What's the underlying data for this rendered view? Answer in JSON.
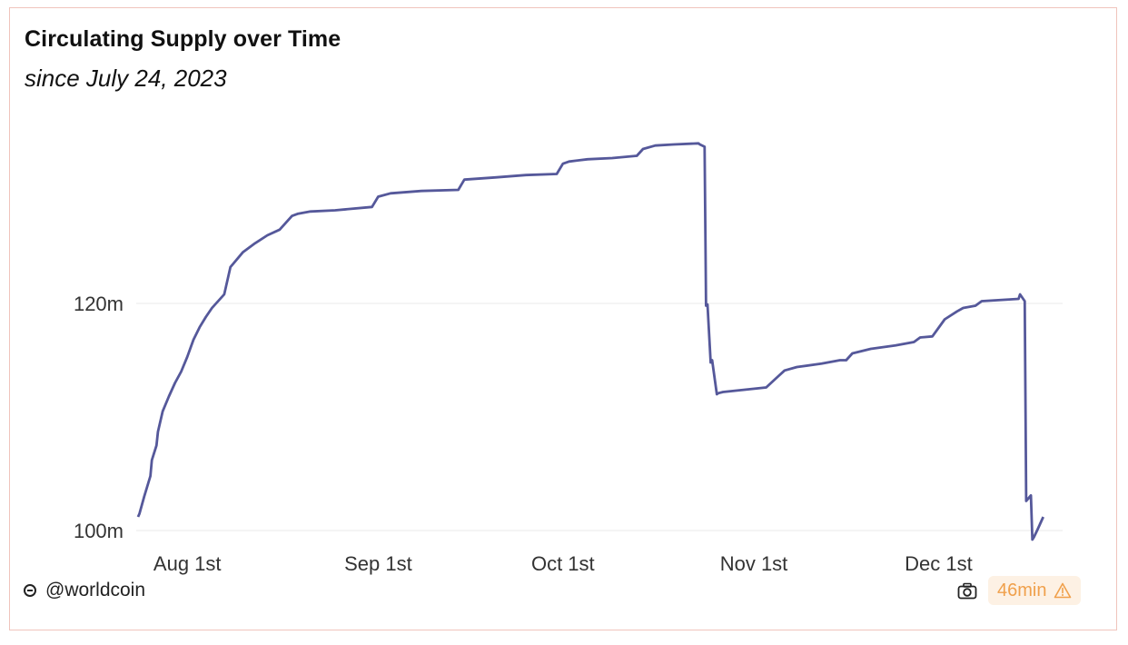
{
  "header": {
    "title": "Circulating Supply over Time",
    "subtitle": "since July 24, 2023"
  },
  "footer": {
    "handle": "@worldcoin",
    "age_label": "46min",
    "brand_icon": "worldcoin-logo-icon",
    "camera_icon": "camera-icon",
    "warning_icon": "warning-icon"
  },
  "colors": {
    "line": "#55589a",
    "grid": "#e8e8e8",
    "warning": "#f0a04b",
    "border": "#f0c4bc"
  },
  "chart_data": {
    "type": "line",
    "title": "Circulating Supply over Time",
    "subtitle": "since July 24, 2023",
    "xlabel": "",
    "ylabel": "",
    "grid": true,
    "x_ticks": [
      {
        "x": "2023-08-01",
        "label": "Aug 1st"
      },
      {
        "x": "2023-09-01",
        "label": "Sep 1st"
      },
      {
        "x": "2023-10-01",
        "label": "Oct 1st"
      },
      {
        "x": "2023-11-01",
        "label": "Nov 1st"
      },
      {
        "x": "2023-12-01",
        "label": "Dec 1st"
      }
    ],
    "y_ticks": [
      {
        "y": 100,
        "label": "100m"
      },
      {
        "y": 120,
        "label": "120m"
      }
    ],
    "xlim": [
      "2023-07-24",
      "2023-12-19"
    ],
    "ylim": [
      99,
      135
    ],
    "series": [
      {
        "x": [
          "2023-07-24",
          "2023-07-24",
          "2023-07-25",
          "2023-07-26",
          "2023-07-26",
          "2023-07-27",
          "2023-07-27",
          "2023-07-28",
          "2023-07-29",
          "2023-07-30",
          "2023-07-31",
          "2023-08-01",
          "2023-08-02",
          "2023-08-03",
          "2023-08-04",
          "2023-08-05",
          "2023-08-07",
          "2023-08-08",
          "2023-08-10",
          "2023-08-12",
          "2023-08-14",
          "2023-08-16",
          "2023-08-18",
          "2023-08-19",
          "2023-08-21",
          "2023-08-25",
          "2023-08-31",
          "2023-09-01",
          "2023-09-03",
          "2023-09-08",
          "2023-09-14",
          "2023-09-15",
          "2023-09-20",
          "2023-09-25",
          "2023-09-30",
          "2023-10-01",
          "2023-10-02",
          "2023-10-05",
          "2023-10-09",
          "2023-10-13",
          "2023-10-14",
          "2023-10-16",
          "2023-10-19",
          "2023-10-23",
          "2023-10-23",
          "2023-10-24",
          "2023-10-24",
          "2023-10-24",
          "2023-10-25",
          "2023-10-25",
          "2023-10-26",
          "2023-10-26",
          "2023-10-27",
          "2023-11-03",
          "2023-11-05",
          "2023-11-06",
          "2023-11-08",
          "2023-11-12",
          "2023-11-15",
          "2023-11-16",
          "2023-11-17",
          "2023-11-20",
          "2023-11-24",
          "2023-11-27",
          "2023-11-28",
          "2023-11-30",
          "2023-12-02",
          "2023-12-04",
          "2023-12-05",
          "2023-12-07",
          "2023-12-08",
          "2023-12-14",
          "2023-12-14",
          "2023-12-15",
          "2023-12-15",
          "2023-12-16",
          "2023-12-16",
          "2023-12-16",
          "2023-12-17",
          "2023-12-18"
        ],
        "y": [
          101.2,
          101.5,
          103.0,
          104.8,
          106.2,
          107.5,
          108.7,
          110.5,
          111.8,
          113.0,
          114.0,
          115.3,
          116.8,
          117.9,
          118.8,
          119.6,
          120.8,
          123.2,
          124.5,
          125.3,
          126.0,
          126.5,
          127.7,
          127.9,
          128.1,
          128.2,
          128.5,
          129.4,
          129.7,
          129.9,
          130.0,
          130.9,
          131.1,
          131.3,
          131.4,
          132.3,
          132.5,
          132.7,
          132.8,
          133.0,
          133.6,
          133.9,
          134.0,
          134.1,
          134.0,
          133.8,
          119.8,
          119.9,
          114.8,
          115.0,
          112.0,
          112.1,
          112.2,
          112.6,
          113.6,
          114.1,
          114.4,
          114.7,
          115.0,
          115.0,
          115.6,
          116.0,
          116.3,
          116.6,
          117.0,
          117.1,
          118.6,
          119.3,
          119.6,
          119.8,
          120.2,
          120.4,
          120.8,
          120.2,
          102.6,
          103.1,
          99.2,
          99.4,
          100.0,
          101.2
        ]
      }
    ]
  }
}
